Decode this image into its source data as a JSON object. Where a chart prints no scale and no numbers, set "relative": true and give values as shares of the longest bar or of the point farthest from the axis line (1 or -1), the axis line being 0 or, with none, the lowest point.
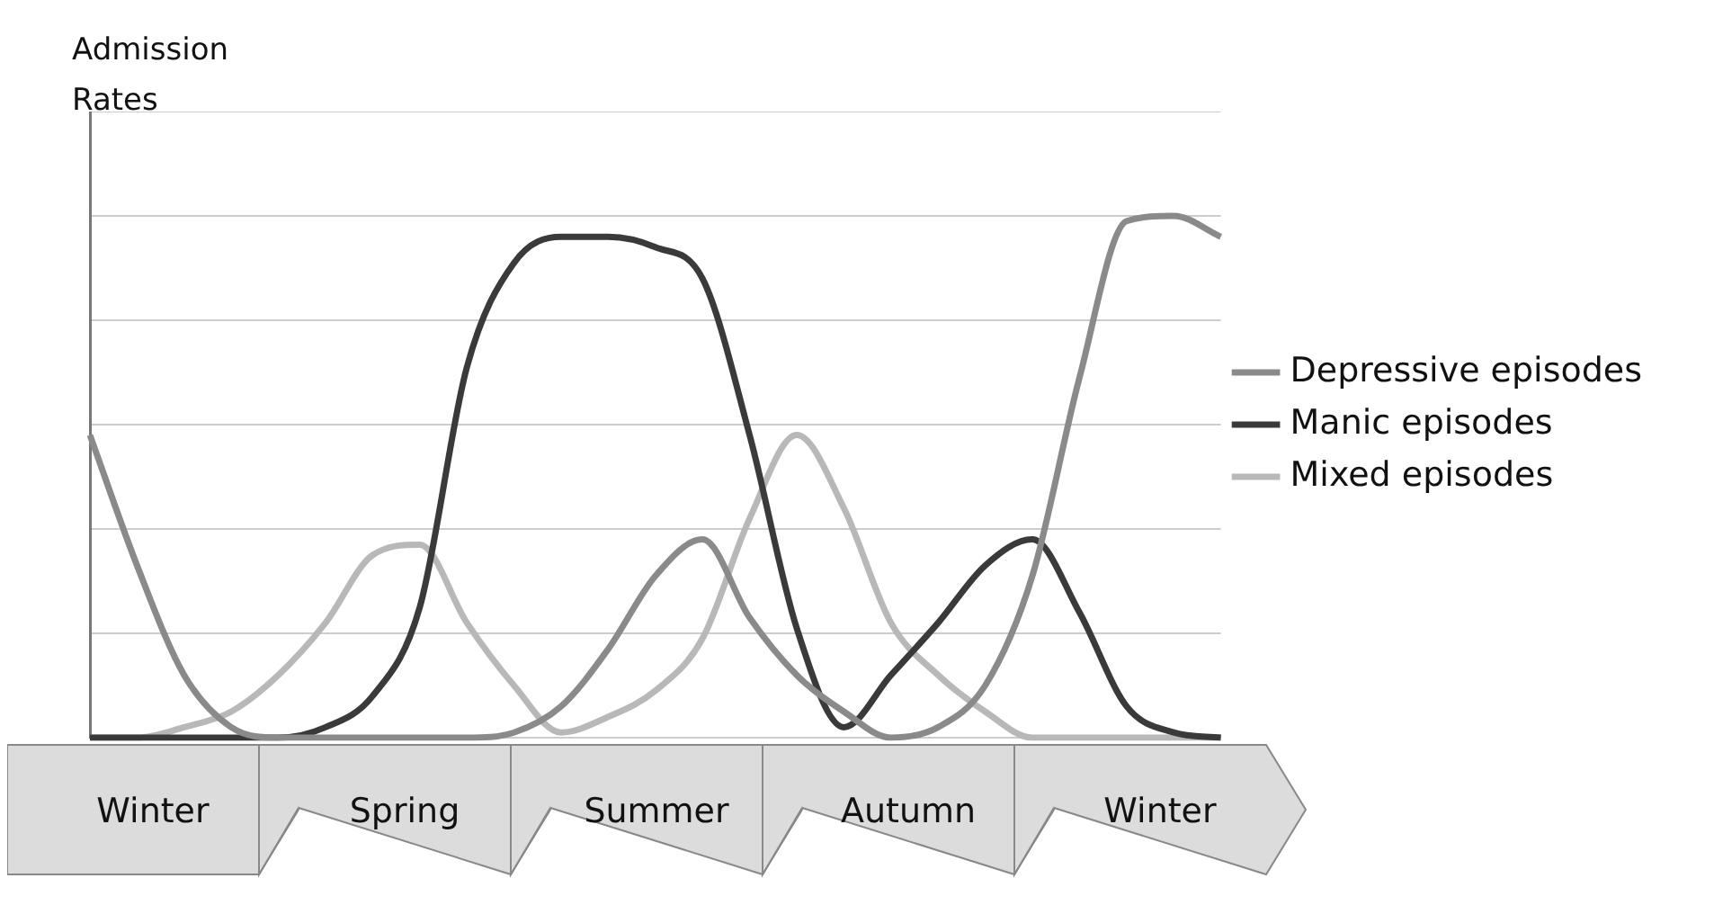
{
  "chart_data": {
    "type": "line",
    "ylabel": "Admission Rates",
    "relative": true,
    "grid": "y",
    "legend": "right",
    "categories": [
      null,
      null,
      null,
      null,
      null,
      null,
      null,
      null,
      null,
      null,
      null,
      null,
      null,
      null,
      null,
      null,
      null,
      null,
      null,
      null,
      null,
      null,
      null,
      null,
      null
    ],
    "series": [
      {
        "name": "Depressive episodes",
        "color": "#8a8a8a",
        "values": [
          0.58,
          0.33,
          0.12,
          0.02,
          0,
          0,
          0,
          0,
          0,
          0.01,
          0.06,
          0.17,
          0.31,
          0.38,
          0.23,
          0.12,
          0.05,
          0,
          0.02,
          0.1,
          0.31,
          0.69,
          0.99,
          1,
          0.96
        ]
      },
      {
        "name": "Manic episodes",
        "color": "#3a3a3a",
        "values": [
          0,
          0,
          0,
          0,
          0,
          0.02,
          0.08,
          0.25,
          0.71,
          0.91,
          0.96,
          0.96,
          0.94,
          0.88,
          0.58,
          0.21,
          0.02,
          0.12,
          0.22,
          0.33,
          0.38,
          0.24,
          0.06,
          0.01,
          0
        ]
      },
      {
        "name": "Mixed episodes",
        "color": "#b8b8b8",
        "values": [
          0,
          0,
          0.02,
          0.05,
          0.12,
          0.22,
          0.35,
          0.37,
          0.22,
          0.1,
          0.01,
          0.04,
          0.09,
          0.19,
          0.42,
          0.58,
          0.44,
          0.22,
          0.12,
          0.05,
          0,
          0,
          0,
          0,
          0
        ]
      }
    ],
    "annotations": [
      "Winter",
      "Spring",
      "Summer",
      "Autumn",
      "Winter"
    ]
  }
}
